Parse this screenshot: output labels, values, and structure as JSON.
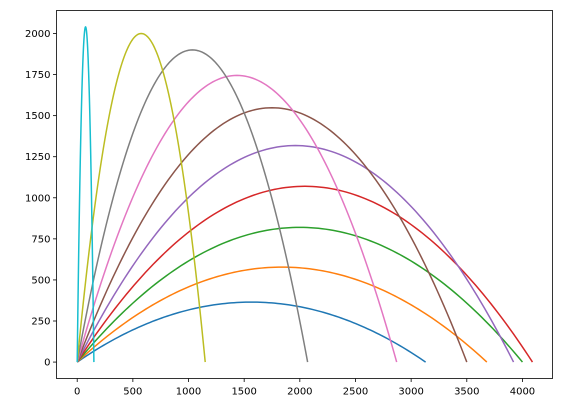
{
  "chart_data": {
    "type": "line",
    "title": "",
    "xlabel": "",
    "ylabel": "",
    "xlim": [
      -186,
      4270
    ],
    "ylim": [
      -100,
      2140
    ],
    "grid": false,
    "legend": "none",
    "x_ticks": [
      0,
      500,
      1000,
      1500,
      2000,
      2500,
      3000,
      3500,
      4000
    ],
    "y_ticks": [
      0,
      250,
      500,
      750,
      1000,
      1250,
      1500,
      1750,
      2000
    ],
    "series": [
      {
        "color": "#1f77b4",
        "shape": "parabola",
        "points": [
          [
            0,
            0
          ],
          [
            1565,
            365
          ],
          [
            3130,
            0
          ]
        ]
      },
      {
        "color": "#ff7f0e",
        "shape": "parabola",
        "points": [
          [
            0,
            0
          ],
          [
            1840,
            578
          ],
          [
            3680,
            0
          ]
        ]
      },
      {
        "color": "#2ca02c",
        "shape": "parabola",
        "points": [
          [
            0,
            0
          ],
          [
            2000,
            820
          ],
          [
            4000,
            0
          ]
        ]
      },
      {
        "color": "#d62728",
        "shape": "parabola",
        "points": [
          [
            0,
            0
          ],
          [
            2045,
            1070
          ],
          [
            4090,
            0
          ]
        ]
      },
      {
        "color": "#9467bd",
        "shape": "parabola",
        "points": [
          [
            0,
            0
          ],
          [
            1960,
            1318
          ],
          [
            3920,
            0
          ]
        ]
      },
      {
        "color": "#8c564b",
        "shape": "parabola",
        "points": [
          [
            0,
            0
          ],
          [
            1750,
            1548
          ],
          [
            3500,
            0
          ]
        ]
      },
      {
        "color": "#e377c2",
        "shape": "parabola",
        "points": [
          [
            0,
            0
          ],
          [
            1435,
            1745
          ],
          [
            2870,
            0
          ]
        ]
      },
      {
        "color": "#7f7f7f",
        "shape": "parabola",
        "points": [
          [
            0,
            0
          ],
          [
            1035,
            1900
          ],
          [
            2070,
            0
          ]
        ]
      },
      {
        "color": "#bcbd22",
        "shape": "parabola",
        "points": [
          [
            0,
            0
          ],
          [
            575,
            2000
          ],
          [
            1150,
            0
          ]
        ]
      },
      {
        "color": "#17becf",
        "shape": "parabola",
        "points": [
          [
            0,
            0
          ],
          [
            75,
            2040
          ],
          [
            150,
            0
          ]
        ]
      }
    ]
  }
}
